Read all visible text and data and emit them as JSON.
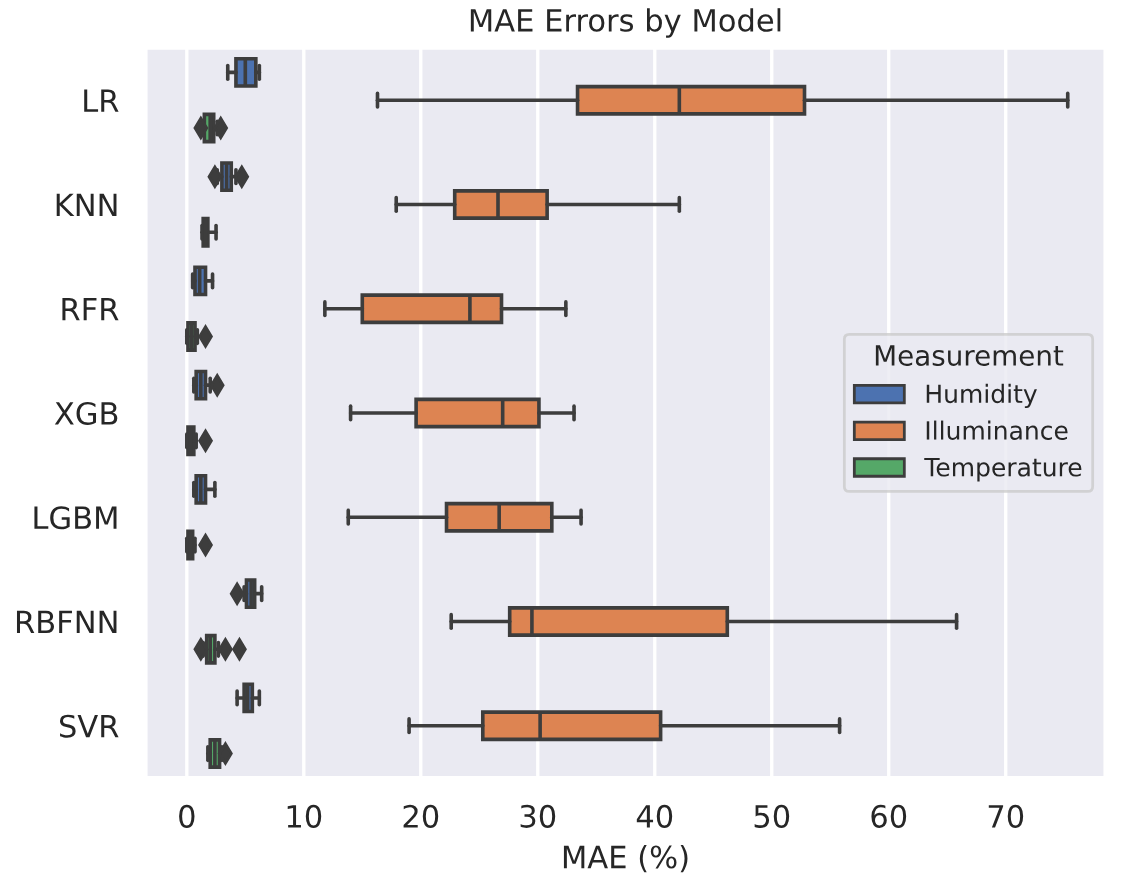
{
  "chart_data": {
    "type": "box",
    "orientation": "horizontal",
    "title": "MAE Errors by Model",
    "xlabel": "MAE (%)",
    "legend_title": "Measurement",
    "legend": "right",
    "grid": "x",
    "marker": "diamond",
    "categories": [
      "LR",
      "KNN",
      "RFR",
      "XGB",
      "LGBM",
      "RBFNN",
      "SVR"
    ],
    "xlim": [
      -3.5,
      78.5
    ],
    "xticks": [
      0,
      10,
      20,
      30,
      40,
      50,
      60,
      70
    ],
    "series": [
      {
        "name": "Humidity",
        "color": "#4c72b0",
        "boxes": [
          {
            "low": 3.5,
            "q1": 4.2,
            "median": 5.0,
            "q3": 5.9,
            "high": 6.2
          },
          {
            "low": 2.6,
            "q1": 3.0,
            "median": 3.4,
            "q3": 3.8,
            "high": 4.2,
            "outliers": [
              2.4,
              4.7
            ]
          },
          {
            "low": 0.5,
            "q1": 0.7,
            "median": 1.1,
            "q3": 1.6,
            "high": 2.2
          },
          {
            "low": 0.6,
            "q1": 0.8,
            "median": 1.2,
            "q3": 1.6,
            "high": 2.0,
            "outliers": [
              2.6
            ]
          },
          {
            "low": 0.6,
            "q1": 0.8,
            "median": 1.2,
            "q3": 1.6,
            "high": 2.4
          },
          {
            "low": 4.9,
            "q1": 5.1,
            "median": 5.5,
            "q3": 5.8,
            "high": 6.4,
            "outliers": [
              4.3
            ]
          },
          {
            "low": 4.3,
            "q1": 4.9,
            "median": 5.2,
            "q3": 5.6,
            "high": 6.2
          }
        ]
      },
      {
        "name": "Illuminance",
        "color": "#dd8452",
        "boxes": [
          {
            "low": 16.3,
            "q1": 33.4,
            "median": 42.1,
            "q3": 52.8,
            "high": 75.3
          },
          {
            "low": 17.9,
            "q1": 22.9,
            "median": 26.6,
            "q3": 30.8,
            "high": 42.1
          },
          {
            "low": 11.8,
            "q1": 15.0,
            "median": 24.2,
            "q3": 26.9,
            "high": 32.4
          },
          {
            "low": 14.0,
            "q1": 19.6,
            "median": 27.0,
            "q3": 30.1,
            "high": 33.1
          },
          {
            "low": 13.8,
            "q1": 22.2,
            "median": 26.7,
            "q3": 31.2,
            "high": 33.7
          },
          {
            "low": 22.6,
            "q1": 27.6,
            "median": 29.5,
            "q3": 46.2,
            "high": 65.8
          },
          {
            "low": 19.0,
            "q1": 25.3,
            "median": 30.2,
            "q3": 40.5,
            "high": 55.8
          }
        ]
      },
      {
        "name": "Temperature",
        "color": "#55a868",
        "boxes": [
          {
            "low": 1.3,
            "q1": 1.5,
            "median": 2.0,
            "q3": 2.3,
            "high": 2.6,
            "outliers": [
              1.2,
              2.9
            ]
          },
          {
            "low": 1.3,
            "q1": 1.4,
            "median": 1.6,
            "q3": 1.8,
            "high": 2.5
          },
          {
            "low": 0.0,
            "q1": 0.1,
            "median": 0.4,
            "q3": 0.7,
            "high": 0.9,
            "outliers": [
              1.6
            ]
          },
          {
            "low": 0.0,
            "q1": 0.1,
            "median": 0.3,
            "q3": 0.6,
            "high": 0.8,
            "outliers": [
              1.6
            ]
          },
          {
            "low": 0.0,
            "q1": 0.1,
            "median": 0.3,
            "q3": 0.5,
            "high": 0.7,
            "outliers": [
              1.6
            ]
          },
          {
            "low": 1.4,
            "q1": 1.7,
            "median": 2.0,
            "q3": 2.4,
            "high": 2.7,
            "outliers": [
              1.2,
              3.3,
              4.5
            ]
          },
          {
            "low": 1.8,
            "q1": 2.0,
            "median": 2.4,
            "q3": 2.8,
            "high": 3.0,
            "outliers": [
              3.3
            ]
          }
        ]
      }
    ]
  }
}
